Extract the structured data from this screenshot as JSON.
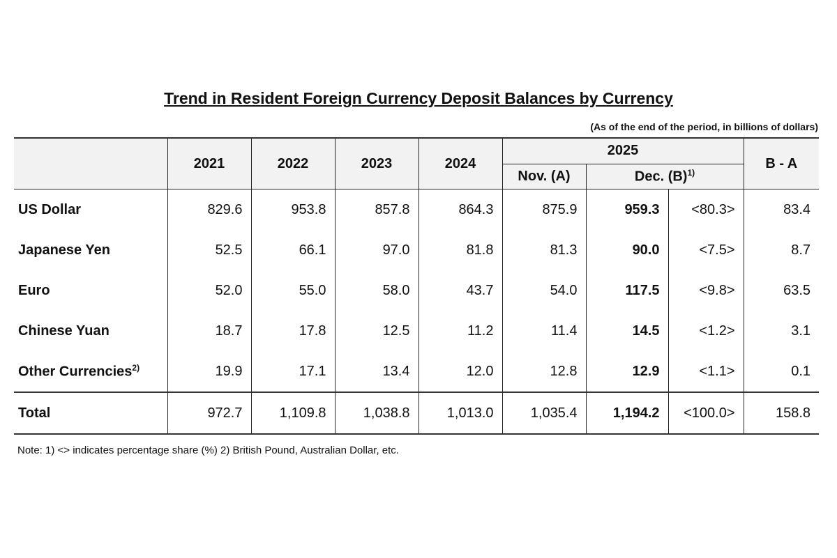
{
  "title": "Trend in Resident Foreign Currency Deposit Balances by Currency",
  "unit_note": "(As of the end of the period, in billions of dollars)",
  "header": {
    "years": [
      "2021",
      "2022",
      "2023",
      "2024"
    ],
    "year_2025": "2025",
    "nov": "Nov. (A)",
    "dec": "Dec. (B)",
    "dec_sup": "1)",
    "diff": "B - A"
  },
  "rows": [
    {
      "label": "US Dollar",
      "sup": "",
      "values": [
        "829.6",
        "953.8",
        "857.8",
        "864.3",
        "875.9"
      ],
      "dec": "959.3",
      "share": "<80.3>",
      "diff": "83.4"
    },
    {
      "label": "Japanese Yen",
      "sup": "",
      "values": [
        "52.5",
        "66.1",
        "97.0",
        "81.8",
        "81.3"
      ],
      "dec": "90.0",
      "share": "<7.5>",
      "diff": "8.7"
    },
    {
      "label": "Euro",
      "sup": "",
      "values": [
        "52.0",
        "55.0",
        "58.0",
        "43.7",
        "54.0"
      ],
      "dec": "117.5",
      "share": "<9.8>",
      "diff": "63.5"
    },
    {
      "label": "Chinese Yuan",
      "sup": "",
      "values": [
        "18.7",
        "17.8",
        "12.5",
        "11.2",
        "11.4"
      ],
      "dec": "14.5",
      "share": "<1.2>",
      "diff": "3.1"
    },
    {
      "label": "Other Currencies",
      "sup": "2)",
      "values": [
        "19.9",
        "17.1",
        "13.4",
        "12.0",
        "12.8"
      ],
      "dec": "12.9",
      "share": "<1.1>",
      "diff": "0.1"
    },
    {
      "label": "Total",
      "sup": "",
      "values": [
        "972.7",
        "1,109.8",
        "1,038.8",
        "1,013.0",
        "1,035.4"
      ],
      "dec": "1,194.2",
      "share": "<100.0>",
      "diff": "158.8"
    }
  ],
  "note": "Note: 1) <> indicates percentage share (%) 2) British Pound, Australian Dollar, etc."
}
